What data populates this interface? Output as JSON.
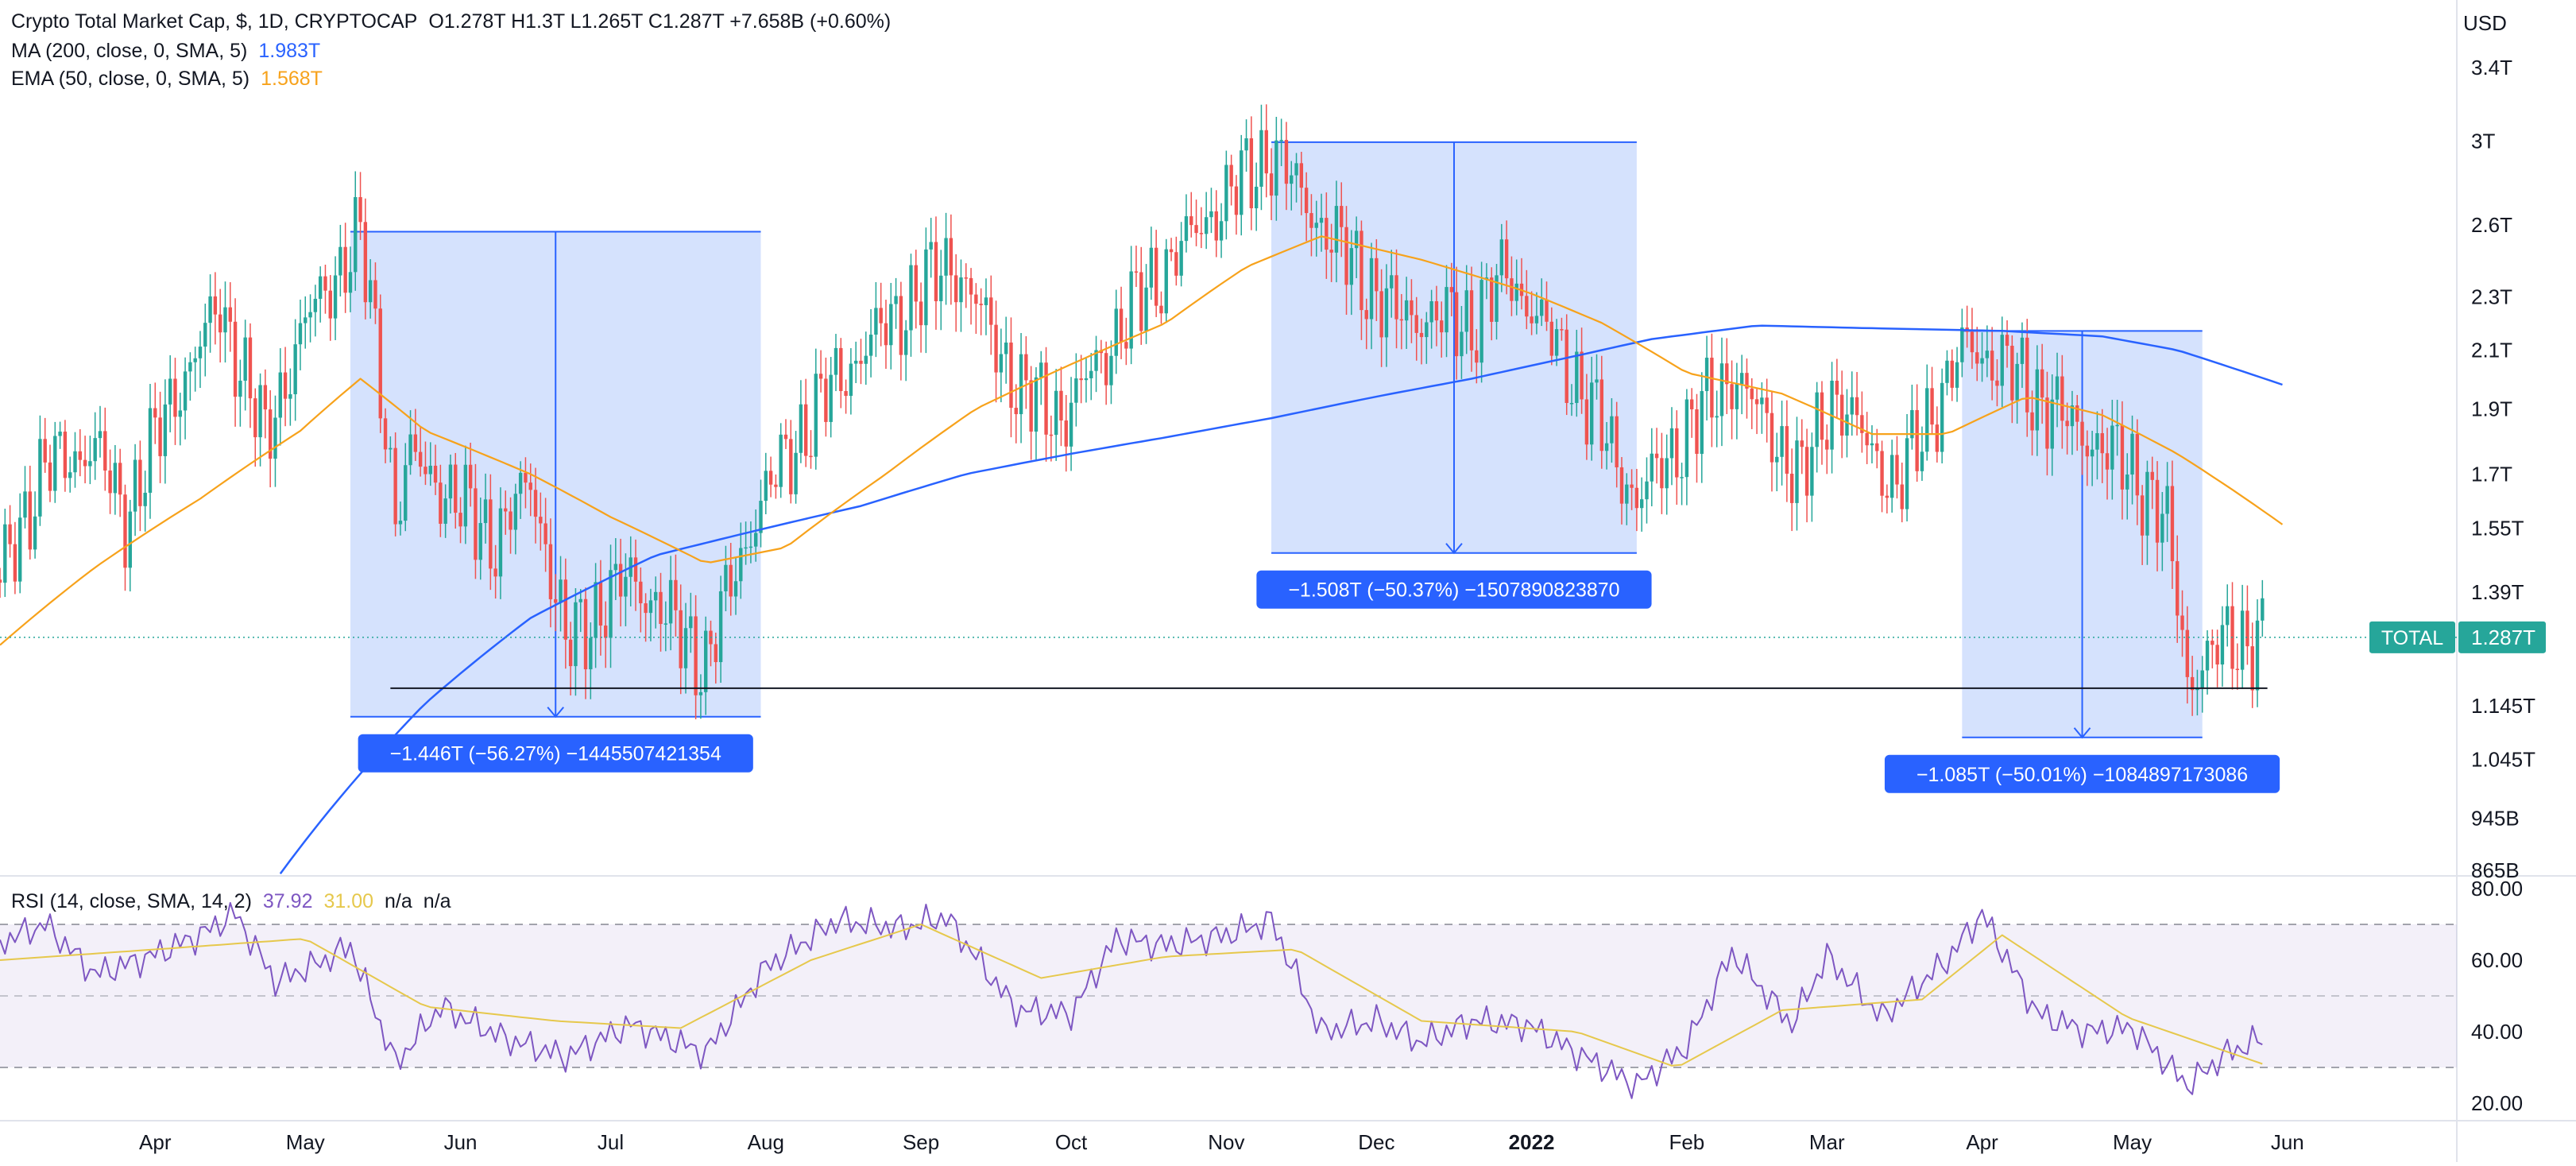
{
  "header": {
    "title": "Crypto Total Market Cap, $, 1D, CRYPTOCAP",
    "ohlc": "O1.278T  H1.3T  L1.265T  C1.287T  +7.658B (+0.60%)",
    "ma_label": "MA (200, close, 0, SMA, 5)",
    "ma_value": "1.983T",
    "ema_label": "EMA (50, close, 0, SMA, 5)",
    "ema_value": "1.568T"
  },
  "price_axis": {
    "currency": "USD",
    "ticks": [
      "3.4T",
      "3T",
      "2.6T",
      "2.3T",
      "2.1T",
      "1.9T",
      "1.7T",
      "1.55T",
      "1.39T",
      "1.145T",
      "1.045T",
      "945B",
      "865B"
    ],
    "tick_values": [
      3.4,
      3.0,
      2.6,
      2.3,
      2.1,
      1.9,
      1.7,
      1.55,
      1.39,
      1.145,
      1.045,
      0.945,
      0.865
    ],
    "current_label": "TOTAL",
    "current_value": "1.287T"
  },
  "rsi": {
    "label": "RSI (14, close, SMA, 14, 2)",
    "value": "37.92",
    "ma_value": "31.00",
    "na1": "n/a",
    "na2": "n/a",
    "ticks": [
      "80.00",
      "60.00",
      "40.00",
      "20.00"
    ],
    "tick_values": [
      80,
      60,
      40,
      20
    ],
    "band_upper": 70,
    "band_mid": 50,
    "band_lower": 30
  },
  "time_axis": {
    "labels": [
      "Apr",
      "May",
      "Jun",
      "Jul",
      "Aug",
      "Sep",
      "Oct",
      "Nov",
      "Dec",
      "2022",
      "Feb",
      "Mar",
      "Apr",
      "May",
      "Jun"
    ],
    "month_starts": [
      "2021-04-01",
      "2021-05-01",
      "2021-06-01",
      "2021-07-01",
      "2021-08-01",
      "2021-09-01",
      "2021-10-01",
      "2021-11-01",
      "2021-12-01",
      "2022-01-01",
      "2022-02-01",
      "2022-03-01",
      "2022-04-01",
      "2022-05-01",
      "2022-06-01"
    ],
    "bold_label": "2022"
  },
  "measures": [
    {
      "label": "−1.446T (−56.27%) −1445507421354",
      "start": "2021-05-10",
      "end": "2021-07-31",
      "high": 2.57,
      "low": 1.124
    },
    {
      "label": "−1.508T (−50.37%) −1507890823870",
      "start": "2021-11-10",
      "end": "2022-01-22",
      "high": 2.994,
      "low": 1.486
    },
    {
      "label": "−1.085T (−50.01%) −1084897173086",
      "start": "2022-03-28",
      "end": "2022-05-15",
      "high": 2.17,
      "low": 1.085
    }
  ],
  "support_line": {
    "value": 1.18,
    "start": "2021-05-18",
    "end": "2022-05-28"
  },
  "colors": {
    "up": "#26a69a",
    "down": "#ef5350",
    "ma200": "#2962ff",
    "ema50": "#f7a21b",
    "rsi": "#7e57c2",
    "rsi_ma": "#e6c84c",
    "measure_fill": "#d3e0fd",
    "measure_line": "#2962ff",
    "label_bg": "#2962ff",
    "total_badge": "#26a69a"
  },
  "chart_data": {
    "type": "candlestick",
    "title": "Crypto Total Market Cap, $, 1D, CRYPTOCAP",
    "x_range": [
      "2021-03-01",
      "2022-06-25"
    ],
    "y_scale": "log",
    "ylim": [
      0.84,
      3.5
    ],
    "series": [
      {
        "name": "MA (200, close, 0, SMA, 5)",
        "points": [
          [
            "2021-04-26",
            0.86
          ],
          [
            "2021-05-10",
            1.0
          ],
          [
            "2021-05-25",
            1.15
          ],
          [
            "2021-06-15",
            1.33
          ],
          [
            "2021-07-10",
            1.48
          ],
          [
            "2021-08-01",
            1.55
          ],
          [
            "2021-08-20",
            1.61
          ],
          [
            "2021-09-10",
            1.7
          ],
          [
            "2021-10-01",
            1.76
          ],
          [
            "2021-10-20",
            1.81
          ],
          [
            "2021-11-10",
            1.87
          ],
          [
            "2021-12-01",
            1.94
          ],
          [
            "2021-12-20",
            2.0
          ],
          [
            "2022-01-10",
            2.08
          ],
          [
            "2022-01-25",
            2.14
          ],
          [
            "2022-02-15",
            2.19
          ],
          [
            "2022-03-10",
            2.18
          ],
          [
            "2022-04-05",
            2.17
          ],
          [
            "2022-04-25",
            2.15
          ],
          [
            "2022-05-10",
            2.1
          ],
          [
            "2022-05-31",
            1.98
          ]
        ]
      },
      {
        "name": "EMA (50, close, 0, SMA, 5)",
        "points": [
          [
            "2021-03-01",
            1.27
          ],
          [
            "2021-03-20",
            1.45
          ],
          [
            "2021-04-10",
            1.63
          ],
          [
            "2021-04-30",
            1.83
          ],
          [
            "2021-05-12",
            2.0
          ],
          [
            "2021-05-25",
            1.83
          ],
          [
            "2021-06-15",
            1.7
          ],
          [
            "2021-07-01",
            1.58
          ],
          [
            "2021-07-20",
            1.46
          ],
          [
            "2021-08-05",
            1.5
          ],
          [
            "2021-08-25",
            1.7
          ],
          [
            "2021-09-12",
            1.9
          ],
          [
            "2021-10-01",
            2.05
          ],
          [
            "2021-10-20",
            2.2
          ],
          [
            "2021-11-05",
            2.42
          ],
          [
            "2021-11-20",
            2.55
          ],
          [
            "2021-12-10",
            2.45
          ],
          [
            "2021-12-31",
            2.32
          ],
          [
            "2022-01-15",
            2.2
          ],
          [
            "2022-02-01",
            2.02
          ],
          [
            "2022-02-20",
            1.95
          ],
          [
            "2022-03-10",
            1.82
          ],
          [
            "2022-03-25",
            1.82
          ],
          [
            "2022-04-10",
            1.94
          ],
          [
            "2022-04-25",
            1.88
          ],
          [
            "2022-05-10",
            1.76
          ],
          [
            "2022-05-31",
            1.56
          ]
        ]
      },
      {
        "name": "RSI (14, close, SMA, 14, 2)",
        "points": [
          [
            "2021-03-01",
            65
          ],
          [
            "2021-03-10",
            70
          ],
          [
            "2021-03-20",
            56
          ],
          [
            "2021-03-31",
            61
          ],
          [
            "2021-04-10",
            67
          ],
          [
            "2021-04-17",
            73
          ],
          [
            "2021-04-25",
            54
          ],
          [
            "2021-05-05",
            60
          ],
          [
            "2021-05-10",
            64
          ],
          [
            "2021-05-19",
            31
          ],
          [
            "2021-05-28",
            47
          ],
          [
            "2021-06-10",
            38
          ],
          [
            "2021-06-22",
            33
          ],
          [
            "2021-07-05",
            42
          ],
          [
            "2021-07-20",
            34
          ],
          [
            "2021-08-01",
            58
          ],
          [
            "2021-08-15",
            71
          ],
          [
            "2021-08-28",
            69
          ],
          [
            "2021-09-06",
            72
          ],
          [
            "2021-09-20",
            46
          ],
          [
            "2021-10-01",
            45
          ],
          [
            "2021-10-10",
            66
          ],
          [
            "2021-10-20",
            64
          ],
          [
            "2021-11-01",
            67
          ],
          [
            "2021-11-10",
            71
          ],
          [
            "2021-11-20",
            40
          ],
          [
            "2021-12-01",
            43
          ],
          [
            "2021-12-10",
            37
          ],
          [
            "2021-12-20",
            43
          ],
          [
            "2021-12-31",
            42
          ],
          [
            "2022-01-10",
            34
          ],
          [
            "2022-01-22",
            25
          ],
          [
            "2022-02-01",
            36
          ],
          [
            "2022-02-10",
            62
          ],
          [
            "2022-02-22",
            42
          ],
          [
            "2022-03-01",
            61
          ],
          [
            "2022-03-12",
            44
          ],
          [
            "2022-03-25",
            60
          ],
          [
            "2022-04-01",
            73
          ],
          [
            "2022-04-12",
            45
          ],
          [
            "2022-04-22",
            40
          ],
          [
            "2022-05-01",
            41
          ],
          [
            "2022-05-12",
            25
          ],
          [
            "2022-05-20",
            34
          ],
          [
            "2022-05-27",
            38
          ]
        ]
      },
      {
        "name": "RSI MA",
        "points": [
          [
            "2021-03-01",
            60
          ],
          [
            "2021-04-01",
            63
          ],
          [
            "2021-05-01",
            66
          ],
          [
            "2021-05-25",
            47
          ],
          [
            "2021-06-20",
            43
          ],
          [
            "2021-07-15",
            41
          ],
          [
            "2021-08-10",
            60
          ],
          [
            "2021-09-01",
            70
          ],
          [
            "2021-09-25",
            55
          ],
          [
            "2021-10-20",
            61
          ],
          [
            "2021-11-15",
            63
          ],
          [
            "2021-12-10",
            43
          ],
          [
            "2022-01-10",
            40
          ],
          [
            "2022-01-30",
            30
          ],
          [
            "2022-02-20",
            46
          ],
          [
            "2022-03-20",
            49
          ],
          [
            "2022-04-05",
            67
          ],
          [
            "2022-04-30",
            44
          ],
          [
            "2022-05-27",
            31
          ]
        ]
      }
    ],
    "price_path": [
      [
        "2021-03-01",
        1.42
      ],
      [
        "2021-03-10",
        1.72
      ],
      [
        "2021-03-20",
        1.78
      ],
      [
        "2021-03-26",
        1.58
      ],
      [
        "2021-04-05",
        1.95
      ],
      [
        "2021-04-14",
        2.26
      ],
      [
        "2021-04-23",
        1.8
      ],
      [
        "2021-05-01",
        2.2
      ],
      [
        "2021-05-12",
        2.55
      ],
      [
        "2021-05-19",
        1.58
      ],
      [
        "2021-05-22",
        1.75
      ],
      [
        "2021-06-08",
        1.52
      ],
      [
        "2021-06-15",
        1.68
      ],
      [
        "2021-06-22",
        1.27
      ],
      [
        "2021-07-05",
        1.43
      ],
      [
        "2021-07-20",
        1.23
      ],
      [
        "2021-07-31",
        1.62
      ],
      [
        "2021-08-14",
        1.97
      ],
      [
        "2021-09-07",
        2.45
      ],
      [
        "2021-09-21",
        1.95
      ],
      [
        "2021-09-30",
        1.88
      ],
      [
        "2021-10-15",
        2.3
      ],
      [
        "2021-11-10",
        2.95
      ],
      [
        "2021-11-20",
        2.6
      ],
      [
        "2021-12-04",
        2.24
      ],
      [
        "2021-12-20",
        2.2
      ],
      [
        "2021-12-27",
        2.4
      ],
      [
        "2022-01-10",
        1.99
      ],
      [
        "2022-01-22",
        1.62
      ],
      [
        "2022-02-10",
        2.02
      ],
      [
        "2022-02-24",
        1.68
      ],
      [
        "2022-03-02",
        1.95
      ],
      [
        "2022-03-15",
        1.66
      ],
      [
        "2022-03-29",
        2.12
      ],
      [
        "2022-04-05",
        2.05
      ],
      [
        "2022-04-18",
        1.86
      ],
      [
        "2022-05-02",
        1.7
      ],
      [
        "2022-05-08",
        1.55
      ],
      [
        "2022-05-12",
        1.2
      ],
      [
        "2022-05-20",
        1.28
      ],
      [
        "2022-05-27",
        1.287
      ]
    ]
  }
}
